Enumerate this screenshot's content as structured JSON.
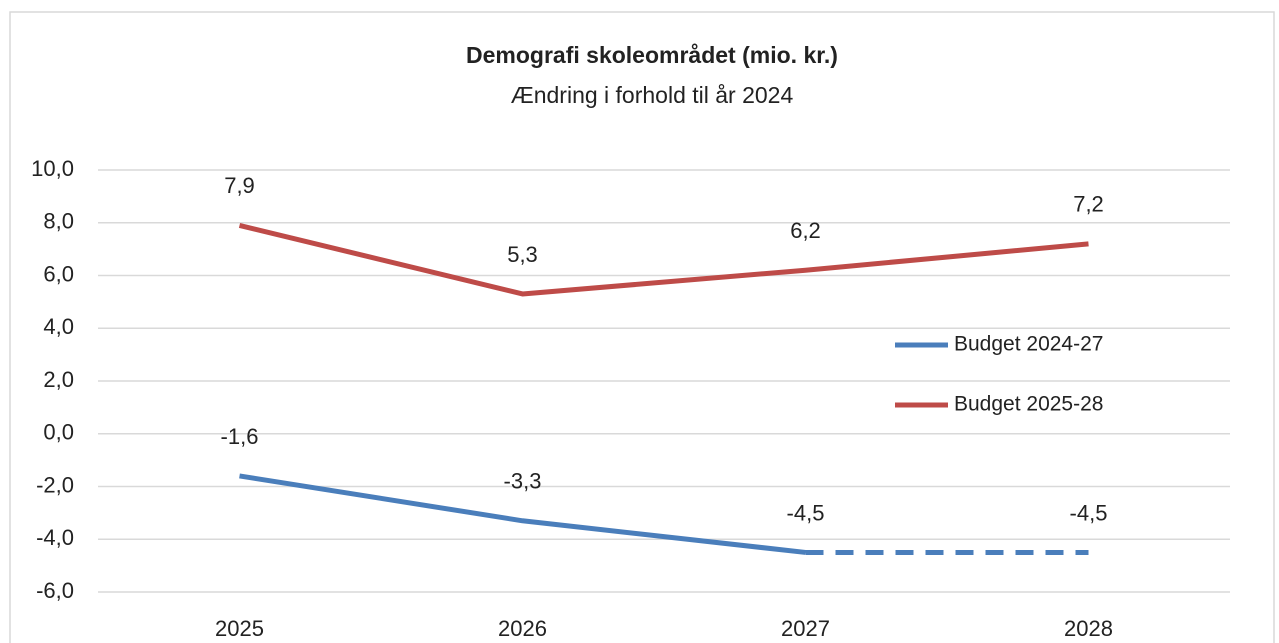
{
  "chart_data": {
    "type": "line",
    "title": "Demografi skoleområdet (mio. kr.)",
    "subtitle": "Ændring i forhold til år 2024",
    "categories": [
      "2025",
      "2026",
      "2027",
      "2028"
    ],
    "series": [
      {
        "name": "Budget 2024-27",
        "color": "#4a7ebb",
        "values": [
          -1.6,
          -3.3,
          -4.5,
          -4.5
        ],
        "value_labels": [
          "-1,6",
          "-3,3",
          "-4,5",
          "-4,5"
        ],
        "dashed_from": 2
      },
      {
        "name": "Budget 2025-28",
        "color": "#be4b48",
        "values": [
          7.9,
          5.3,
          6.2,
          7.2
        ],
        "value_labels": [
          "7,9",
          "5,3",
          "6,2",
          "7,2"
        ]
      }
    ],
    "ylim": [
      -6,
      10
    ],
    "yticks": [
      {
        "value": -6,
        "label": "-6,0"
      },
      {
        "value": -4,
        "label": "-4,0"
      },
      {
        "value": -2,
        "label": "-2,0"
      },
      {
        "value": 0,
        "label": "0,0"
      },
      {
        "value": 2,
        "label": "2,0"
      },
      {
        "value": 4,
        "label": "4,0"
      },
      {
        "value": 6,
        "label": "6,0"
      },
      {
        "value": 8,
        "label": "8,0"
      },
      {
        "value": 10,
        "label": "10,0"
      }
    ],
    "grid": true
  }
}
